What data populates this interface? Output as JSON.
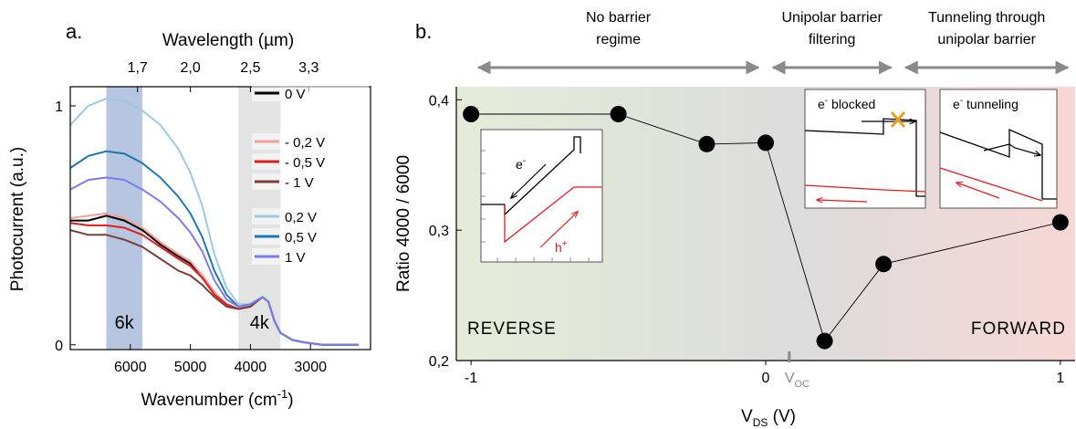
{
  "chart_data": [
    {
      "type": "line",
      "panel_label": "a.",
      "xlabel_main": "Wavenumber (cm",
      "xlabel_sup": "-1",
      "xlabel_end": ")",
      "xlabel_top": "Wavelength (µm)",
      "ylabel": "Photocurrent (a.u.)",
      "x_reversed": true,
      "xlim": [
        7000,
        2000
      ],
      "ylim": [
        -0.02,
        1.08
      ],
      "x_ticks": [
        "6000",
        "5000",
        "4000",
        "3000"
      ],
      "x_tick_values": [
        6000,
        5000,
        4000,
        3000
      ],
      "top_ticks": [
        "1,7",
        "2,0",
        "2,5",
        "3,3"
      ],
      "top_tick_values": [
        5880,
        5000,
        4000,
        3030
      ],
      "y_ticks": [
        "0",
        "1"
      ],
      "y_tick_values": [
        0,
        1
      ],
      "bands": [
        {
          "label": "6k",
          "from": 6400,
          "to": 5800,
          "color": "#9db3d6"
        },
        {
          "label": "4k",
          "from": 4200,
          "to": 3500,
          "color": "#d9d9d9"
        }
      ],
      "series": [
        {
          "name": "0 V",
          "color": "#000000",
          "group": 0,
          "x": [
            7000,
            6700,
            6400,
            6100,
            5800,
            5500,
            5200,
            5000,
            4800,
            4600,
            4400,
            4200,
            4000,
            3800,
            3700,
            3600,
            3500,
            3300,
            3100,
            2800,
            2500,
            2200
          ],
          "y": [
            0.52,
            0.52,
            0.54,
            0.52,
            0.48,
            0.42,
            0.37,
            0.34,
            0.29,
            0.22,
            0.17,
            0.15,
            0.16,
            0.2,
            0.18,
            0.1,
            0.05,
            0.02,
            0.01,
            0.0,
            0.0,
            0.0
          ]
        },
        {
          "name": "- 0,2 V",
          "color": "#f4a09a",
          "group": 1,
          "x": [
            7000,
            6700,
            6400,
            6100,
            5800,
            5500,
            5200,
            5000,
            4800,
            4600,
            4400,
            4200,
            4000,
            3800,
            3700,
            3600,
            3500,
            3300,
            3100,
            2800,
            2500,
            2200
          ],
          "y": [
            0.53,
            0.54,
            0.55,
            0.53,
            0.49,
            0.43,
            0.38,
            0.35,
            0.29,
            0.22,
            0.17,
            0.15,
            0.16,
            0.2,
            0.18,
            0.1,
            0.05,
            0.02,
            0.01,
            0.0,
            0.0,
            0.0
          ]
        },
        {
          "name": "- 0,5 V",
          "color": "#e41a1c",
          "group": 1,
          "x": [
            7000,
            6700,
            6400,
            6100,
            5800,
            5500,
            5200,
            5000,
            4800,
            4600,
            4400,
            4200,
            4000,
            3800,
            3700,
            3600,
            3500,
            3300,
            3100,
            2800,
            2500,
            2200
          ],
          "y": [
            0.51,
            0.5,
            0.5,
            0.49,
            0.46,
            0.41,
            0.36,
            0.33,
            0.28,
            0.21,
            0.17,
            0.15,
            0.16,
            0.2,
            0.18,
            0.1,
            0.05,
            0.02,
            0.01,
            0.0,
            0.0,
            0.0
          ]
        },
        {
          "name": "- 1 V",
          "color": "#7b3f3a",
          "group": 1,
          "x": [
            7000,
            6700,
            6400,
            6100,
            5800,
            5500,
            5200,
            5000,
            4800,
            4600,
            4400,
            4200,
            4000,
            3800,
            3700,
            3600,
            3500,
            3300,
            3100,
            2800,
            2500,
            2200
          ],
          "y": [
            0.48,
            0.46,
            0.46,
            0.44,
            0.41,
            0.36,
            0.31,
            0.29,
            0.25,
            0.2,
            0.16,
            0.15,
            0.16,
            0.2,
            0.18,
            0.1,
            0.05,
            0.02,
            0.01,
            0.0,
            0.0,
            0.0
          ]
        },
        {
          "name": "0,2 V",
          "color": "#9ecae1",
          "group": 2,
          "x": [
            7000,
            6700,
            6400,
            6100,
            5800,
            5500,
            5200,
            5000,
            4800,
            4600,
            4400,
            4200,
            4000,
            3800,
            3700,
            3600,
            3500,
            3300,
            3100,
            2800,
            2500,
            2200
          ],
          "y": [
            0.92,
            1.0,
            1.03,
            1.02,
            0.98,
            0.92,
            0.82,
            0.72,
            0.58,
            0.38,
            0.24,
            0.17,
            0.17,
            0.2,
            0.18,
            0.1,
            0.05,
            0.02,
            0.01,
            0.0,
            0.0,
            0.0
          ]
        },
        {
          "name": "0,5 V",
          "color": "#1b78b4",
          "group": 2,
          "x": [
            7000,
            6700,
            6400,
            6100,
            5800,
            5500,
            5200,
            5000,
            4800,
            4600,
            4400,
            4200,
            4000,
            3800,
            3700,
            3600,
            3500,
            3300,
            3100,
            2800,
            2500,
            2200
          ],
          "y": [
            0.74,
            0.79,
            0.81,
            0.8,
            0.76,
            0.7,
            0.62,
            0.55,
            0.45,
            0.31,
            0.21,
            0.16,
            0.17,
            0.2,
            0.18,
            0.1,
            0.05,
            0.02,
            0.01,
            0.0,
            0.0,
            0.0
          ]
        },
        {
          "name": "1 V",
          "color": "#7b7bea",
          "group": 2,
          "x": [
            7000,
            6700,
            6400,
            6100,
            5800,
            5500,
            5200,
            5000,
            4800,
            4600,
            4400,
            4200,
            4000,
            3800,
            3700,
            3600,
            3500,
            3300,
            3100,
            2800,
            2500,
            2200
          ],
          "y": [
            0.65,
            0.69,
            0.7,
            0.69,
            0.65,
            0.6,
            0.53,
            0.47,
            0.39,
            0.27,
            0.19,
            0.16,
            0.17,
            0.2,
            0.18,
            0.1,
            0.05,
            0.02,
            0.01,
            0.0,
            0.0,
            0.0
          ]
        }
      ]
    },
    {
      "type": "scatter",
      "panel_label": "b.",
      "xlabel_main": "V",
      "xlabel_sub": "DS",
      "xlabel_end": " (V)",
      "ylabel": "Ratio 4000 / 6000",
      "xlim": [
        -1.05,
        1.05
      ],
      "ylim": [
        0.2,
        0.41
      ],
      "x_ticks": [
        "-1",
        "0",
        "1"
      ],
      "x_tick_values": [
        -1,
        0,
        1
      ],
      "y_ticks": [
        "0,4",
        "0,3",
        "0,2"
      ],
      "y_tick_values": [
        0.4,
        0.3,
        0.2
      ],
      "voc_label_main": "V",
      "voc_label_sub": "OC",
      "voc_value": 0.08,
      "regime_left": "REVERSE",
      "regime_right": "FORWARD",
      "regimes": [
        {
          "lines": [
            "No barrier",
            "regime"
          ],
          "from": -1.0,
          "to": 0.0
        },
        {
          "lines": [
            "Unipolar barrier",
            "filtering"
          ],
          "from": 0.0,
          "to": 0.45
        },
        {
          "lines": [
            "Tunneling through",
            "unipolar barrier"
          ],
          "from": 0.45,
          "to": 1.05
        }
      ],
      "x": [
        -1.0,
        -0.5,
        -0.2,
        0.0,
        0.2,
        0.4,
        1.0
      ],
      "y": [
        0.389,
        0.389,
        0.366,
        0.367,
        0.215,
        0.274,
        0.306
      ],
      "background_colors": {
        "left": "#e4ecd9",
        "mid": "#dcdcdc",
        "right": "#f7d7d6"
      }
    }
  ],
  "insets": {
    "reverse": {
      "electron_label": "e",
      "electron_sup": "-",
      "hole_label": "h",
      "hole_sup": "+"
    },
    "blocked": {
      "label": "e",
      "label_sup": "-",
      "label_rest": " blocked"
    },
    "tunneling": {
      "label": "e",
      "label_sup": "-",
      "label_rest": " tunneling"
    }
  },
  "colors": {
    "band_red": "#e41a1c",
    "cross": "#e8a020",
    "arrow_gray": "#8a8a8a"
  }
}
